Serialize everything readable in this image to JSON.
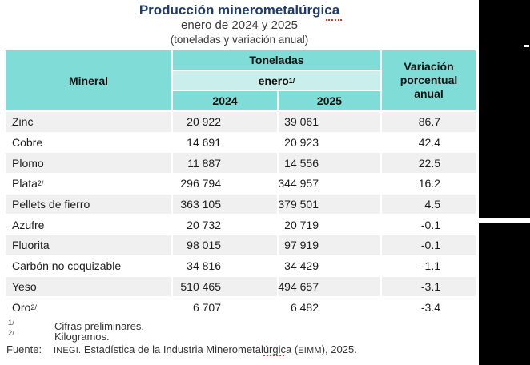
{
  "title": "Producción minerometalúrgica",
  "subtitle_line1": "enero de 2024 y 2025",
  "subtitle_line2": "(toneladas y variación anual)",
  "table": {
    "header": {
      "mineral": "Mineral",
      "toneladas": "Toneladas",
      "enero": "enero",
      "enero_sup": "1/",
      "y2024": "2024",
      "y2025": "2025",
      "variacion": "Variación porcentual anual"
    },
    "rows": [
      {
        "name": "Zinc",
        "sup": "",
        "v2024": "20 922",
        "v2025": "39 061",
        "pct": "86.7"
      },
      {
        "name": "Cobre",
        "sup": "",
        "v2024": "14 691",
        "v2025": "20 923",
        "pct": "42.4"
      },
      {
        "name": "Plomo",
        "sup": "",
        "v2024": "11 887",
        "v2025": "14 556",
        "pct": "22.5"
      },
      {
        "name": "Plata",
        "sup": "2/",
        "v2024": "296 794",
        "v2025": "344 957",
        "pct": "16.2"
      },
      {
        "name": "Pellets de fierro",
        "sup": "",
        "v2024": "363 105",
        "v2025": "379 501",
        "pct": "4.5"
      },
      {
        "name": "Azufre",
        "sup": "",
        "v2024": "20 732",
        "v2025": "20 719",
        "pct": "-0.1"
      },
      {
        "name": "Fluorita",
        "sup": "",
        "v2024": "98 015",
        "v2025": "97 919",
        "pct": "-0.1"
      },
      {
        "name": "Carbón no coquizable",
        "sup": "",
        "v2024": "34 816",
        "v2025": "34 429",
        "pct": "-1.1"
      },
      {
        "name": "Yeso",
        "sup": "",
        "v2024": "510 465",
        "v2025": "494 657",
        "pct": "-3.1"
      },
      {
        "name": "Oro",
        "sup": "2/",
        "v2024": "6 707",
        "v2025": "6 482",
        "pct": "-3.4"
      }
    ]
  },
  "footnotes": {
    "fn1_marker": "1/",
    "fn1_text": "Cifras preliminares.",
    "fn2_marker": "2/",
    "fn2_text": "Kilogramos.",
    "source_label": "Fuente:",
    "source_acronym1": "INEGI.",
    "source_text_pre": " Estadística de la Industria Minerometalúrgica (",
    "source_acronym2": "EIMM",
    "source_text_post": "), 2025."
  },
  "colors": {
    "title": "#1e3a6e",
    "header_teal": "#7fdcd6",
    "header_teal_light": "#c9eeeb",
    "row_alt": "#f0f0f0",
    "squiggle": "#cc3b33"
  }
}
